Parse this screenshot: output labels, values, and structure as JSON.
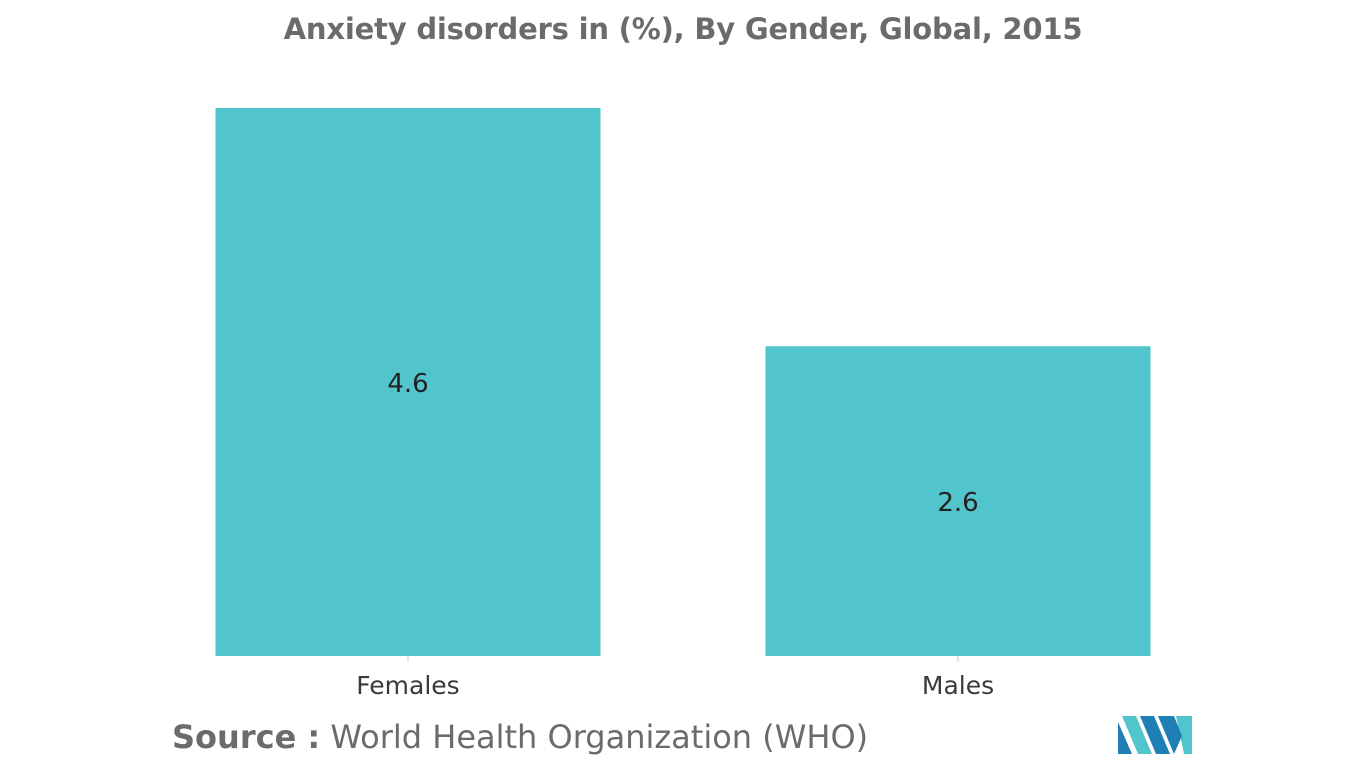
{
  "chart_data": {
    "type": "bar",
    "title": "Anxiety disorders in (%), By Gender, Global, 2015",
    "categories": [
      "Females",
      "Males"
    ],
    "values": [
      4.6,
      2.6
    ],
    "data_labels": [
      "4.6",
      "2.6"
    ],
    "xlabel": "",
    "ylabel": "",
    "ylim": [
      0,
      4.6
    ],
    "grid": false,
    "legend": "none",
    "bar_color": "#52c4cb"
  },
  "footer": {
    "source_label": "Source :",
    "source_text": "World Health Organization (WHO)"
  },
  "colors": {
    "bar": "#52c4cb",
    "text": "#6b6b6b",
    "data_label": "#222222",
    "axis": "#c8c8c8",
    "logo_dark": "#1f7fb5",
    "logo_light": "#52c4cb"
  }
}
